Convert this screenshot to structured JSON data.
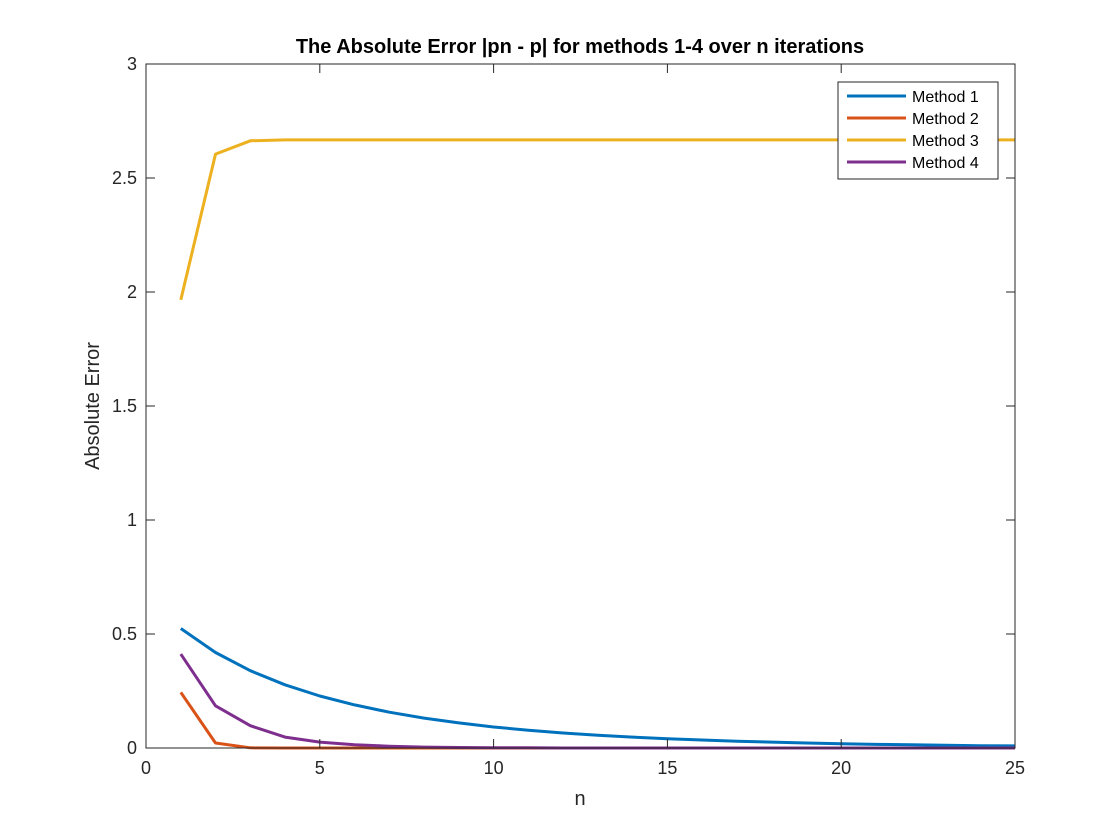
{
  "chart_data": {
    "type": "line",
    "title": "The Absolute Error |pn - p| for methods 1-4 over n iterations",
    "xlabel": "n",
    "ylabel": "Absolute Error",
    "xlim": [
      0,
      25
    ],
    "ylim": [
      0,
      3
    ],
    "xticks": [
      "0",
      "5",
      "10",
      "15",
      "20",
      "25"
    ],
    "yticks": [
      "0",
      "0.5",
      "1",
      "1.5",
      "2",
      "2.5",
      "3"
    ],
    "grid": false,
    "legend_position": "top-right",
    "x": [
      1,
      2,
      3,
      4,
      5,
      6,
      7,
      8,
      9,
      10,
      11,
      12,
      13,
      14,
      15,
      16,
      17,
      18,
      19,
      20,
      21,
      22,
      23,
      24,
      25
    ],
    "series": [
      {
        "name": "Method 1",
        "color": "#0072BD",
        "values": [
          0.524,
          0.419,
          0.339,
          0.277,
          0.228,
          0.189,
          0.157,
          0.131,
          0.11,
          0.092,
          0.078,
          0.066,
          0.056,
          0.048,
          0.041,
          0.035,
          0.03,
          0.026,
          0.022,
          0.019,
          0.016,
          0.014,
          0.012,
          0.01,
          0.009
        ]
      },
      {
        "name": "Method 2",
        "color": "#D95319",
        "values": [
          0.244,
          0.022,
          0.001,
          0,
          0,
          0,
          0,
          0,
          0,
          0,
          0,
          0,
          0,
          0,
          0,
          0,
          0,
          0,
          0,
          0,
          0,
          0,
          0,
          0,
          0
        ]
      },
      {
        "name": "Method 3",
        "color": "#EDB120",
        "values": [
          1.966,
          2.605,
          2.663,
          2.667,
          2.667,
          2.667,
          2.667,
          2.667,
          2.667,
          2.667,
          2.667,
          2.667,
          2.667,
          2.667,
          2.667,
          2.667,
          2.667,
          2.667,
          2.667,
          2.667,
          2.667,
          2.667,
          2.667,
          2.667,
          2.667
        ]
      },
      {
        "name": "Method 4",
        "color": "#7E2F8E",
        "values": [
          0.412,
          0.185,
          0.098,
          0.048,
          0.026,
          0.014,
          0.008,
          0.004,
          0.002,
          0.001,
          0.001,
          0,
          0,
          0,
          0,
          0,
          0,
          0,
          0,
          0,
          0,
          0,
          0,
          0,
          0
        ]
      }
    ]
  }
}
